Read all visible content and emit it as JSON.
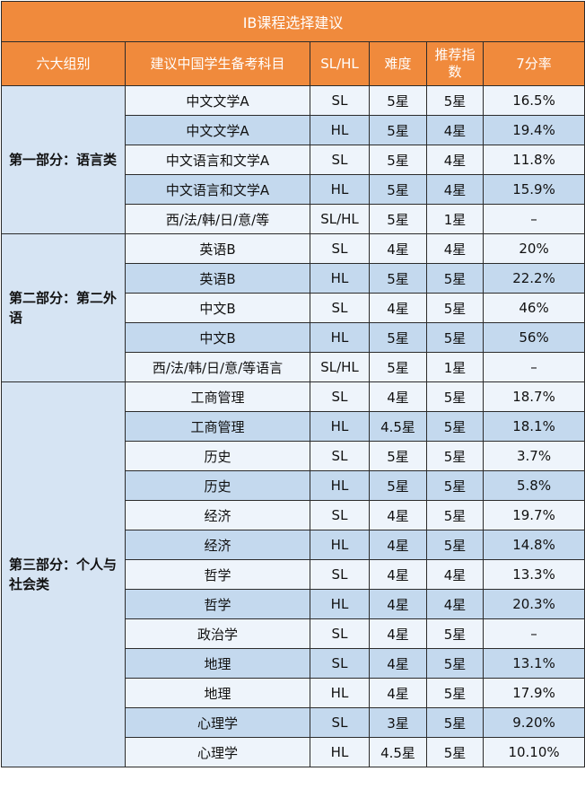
{
  "title": "IB课程选择建议",
  "header": [
    "六大组别",
    "建议中国学生备考科目",
    "SL/HL",
    "难度",
    "推荐指数",
    "7分率"
  ],
  "groups": [
    {
      "name": "第一部分：语言类",
      "rows": [
        [
          "中文文学A",
          "SL",
          "5星",
          "5星",
          "16.5%"
        ],
        [
          "中文文学A",
          "HL",
          "5星",
          "4星",
          "19.4%"
        ],
        [
          "中文语言和文学A",
          "SL",
          "5星",
          "4星",
          "11.8%"
        ],
        [
          "中文语言和文学A",
          "HL",
          "5星",
          "4星",
          "15.9%"
        ],
        [
          "西/法/韩/日/意/等",
          "SL/HL",
          "5星",
          "1星",
          "–"
        ]
      ]
    },
    {
      "name": "第二部分：第二外语",
      "rows": [
        [
          "英语B",
          "SL",
          "4星",
          "4星",
          "20%"
        ],
        [
          "英语B",
          "HL",
          "5星",
          "5星",
          "22.2%"
        ],
        [
          "中文B",
          "SL",
          "4星",
          "5星",
          "46%"
        ],
        [
          "中文B",
          "HL",
          "5星",
          "5星",
          "56%"
        ],
        [
          "西/法/韩/日/意/等语言",
          "SL/HL",
          "5星",
          "1星",
          "–"
        ]
      ]
    },
    {
      "name": "第三部分：个人与社会类",
      "rows": [
        [
          "工商管理",
          "SL",
          "4星",
          "5星",
          "18.7%"
        ],
        [
          "工商管理",
          "HL",
          "4.5星",
          "5星",
          "18.1%"
        ],
        [
          "历史",
          "SL",
          "5星",
          "5星",
          "3.7%"
        ],
        [
          "历史",
          "HL",
          "5星",
          "5星",
          "5.8%"
        ],
        [
          "经济",
          "SL",
          "4星",
          "5星",
          "19.7%"
        ],
        [
          "经济",
          "HL",
          "4星",
          "5星",
          "14.8%"
        ],
        [
          "哲学",
          "SL",
          "4星",
          "4星",
          "13.3%"
        ],
        [
          "哲学",
          "HL",
          "4星",
          "4星",
          "20.3%"
        ],
        [
          "政治学",
          "SL",
          "4星",
          "5星",
          "–"
        ],
        [
          "地理",
          "SL",
          "4星",
          "5星",
          "13.1%"
        ],
        [
          "地理",
          "HL",
          "4星",
          "5星",
          "17.9%"
        ],
        [
          "心理学",
          "SL",
          "3星",
          "5星",
          "9.20%"
        ],
        [
          "心理学",
          "HL",
          "4.5星",
          "5星",
          "10.10%"
        ]
      ]
    }
  ]
}
